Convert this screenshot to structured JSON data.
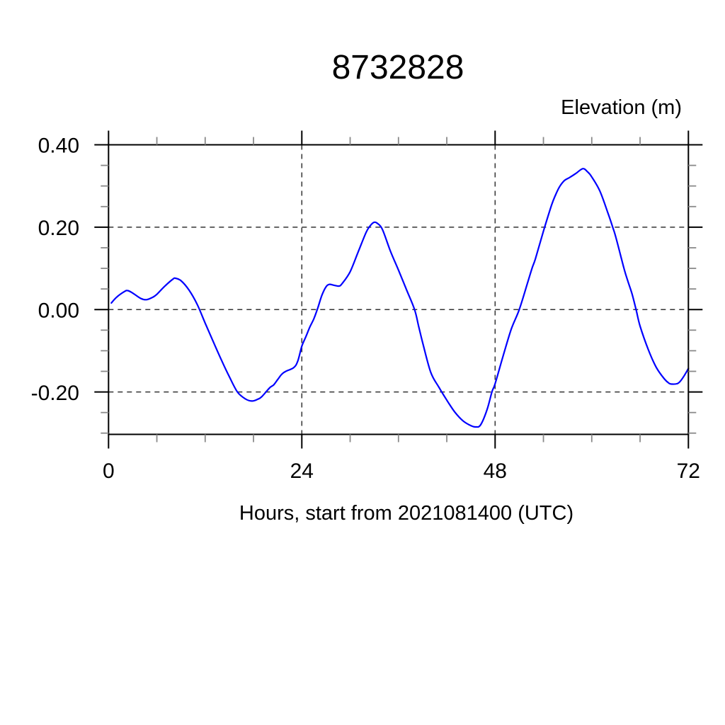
{
  "page": {
    "background_color": "#ffffff",
    "text_color": "#000000"
  },
  "chart_data": {
    "type": "line",
    "title": "8732828",
    "y_axis_label": "Elevation (m)",
    "x_axis_label": "Hours, start from 2021081400 (UTC)",
    "xlim": [
      0,
      72
    ],
    "ylim": [
      -0.303,
      0.4
    ],
    "x_major_ticks": [
      0,
      24,
      48,
      72
    ],
    "x_tick_labels": [
      "0",
      "24",
      "48",
      "72"
    ],
    "x_minor_step": 6,
    "y_major_ticks": [
      0.4,
      0.2,
      0.0,
      -0.2
    ],
    "y_tick_labels": [
      "0.40",
      "0.20",
      "0.00",
      "-0.20"
    ],
    "y_minor_step": 0.05,
    "grid": {
      "style": "dashed",
      "color": "#333333",
      "on_major_ticks": true
    },
    "frame": {
      "color": "#000000",
      "ticks_outward_all_sides": true
    },
    "line_color": "#0000ff",
    "series": [
      {
        "name": "elevation",
        "points": [
          [
            0.35,
            0.016
          ],
          [
            1,
            0.03
          ],
          [
            2,
            0.044
          ],
          [
            2.4,
            0.046
          ],
          [
            3,
            0.04
          ],
          [
            4,
            0.027
          ],
          [
            4.7,
            0.024
          ],
          [
            5.5,
            0.03
          ],
          [
            6,
            0.037
          ],
          [
            7,
            0.057
          ],
          [
            8,
            0.074
          ],
          [
            8.3,
            0.076
          ],
          [
            9,
            0.07
          ],
          [
            10,
            0.047
          ],
          [
            11,
            0.013
          ],
          [
            12,
            -0.033
          ],
          [
            13,
            -0.078
          ],
          [
            14,
            -0.122
          ],
          [
            15,
            -0.163
          ],
          [
            16,
            -0.2
          ],
          [
            17,
            -0.217
          ],
          [
            17.8,
            -0.222
          ],
          [
            18.5,
            -0.218
          ],
          [
            19,
            -0.212
          ],
          [
            20,
            -0.19
          ],
          [
            20.5,
            -0.183
          ],
          [
            21,
            -0.17
          ],
          [
            21.5,
            -0.157
          ],
          [
            22,
            -0.15
          ],
          [
            23,
            -0.141
          ],
          [
            23.5,
            -0.125
          ],
          [
            24,
            -0.089
          ],
          [
            24.5,
            -0.066
          ],
          [
            25,
            -0.042
          ],
          [
            25.5,
            -0.022
          ],
          [
            26,
            0.005
          ],
          [
            26.5,
            0.035
          ],
          [
            27,
            0.055
          ],
          [
            27.4,
            0.061
          ],
          [
            28,
            0.059
          ],
          [
            28.6,
            0.057
          ],
          [
            29,
            0.063
          ],
          [
            30,
            0.092
          ],
          [
            31,
            0.14
          ],
          [
            32,
            0.188
          ],
          [
            32.6,
            0.206
          ],
          [
            33,
            0.212
          ],
          [
            33.4,
            0.209
          ],
          [
            34,
            0.195
          ],
          [
            35,
            0.142
          ],
          [
            36,
            0.096
          ],
          [
            37,
            0.048
          ],
          [
            38,
            0.0
          ],
          [
            38.5,
            -0.04
          ],
          [
            39,
            -0.08
          ],
          [
            40,
            -0.152
          ],
          [
            41,
            -0.188
          ],
          [
            42,
            -0.22
          ],
          [
            43,
            -0.249
          ],
          [
            44,
            -0.27
          ],
          [
            45,
            -0.282
          ],
          [
            45.6,
            -0.285
          ],
          [
            46.2,
            -0.28
          ],
          [
            47,
            -0.243
          ],
          [
            47.6,
            -0.2
          ],
          [
            48,
            -0.18
          ],
          [
            49,
            -0.112
          ],
          [
            50,
            -0.048
          ],
          [
            51,
            0.0
          ],
          [
            52,
            0.063
          ],
          [
            52.6,
            0.101
          ],
          [
            53,
            0.123
          ],
          [
            54,
            0.19
          ],
          [
            55,
            0.253
          ],
          [
            55.5,
            0.278
          ],
          [
            56,
            0.298
          ],
          [
            56.6,
            0.313
          ],
          [
            57.2,
            0.32
          ],
          [
            58,
            0.33
          ],
          [
            58.9,
            0.342
          ],
          [
            59.5,
            0.334
          ],
          [
            60,
            0.322
          ],
          [
            61,
            0.288
          ],
          [
            62,
            0.235
          ],
          [
            62.6,
            0.2
          ],
          [
            63,
            0.175
          ],
          [
            64,
            0.1
          ],
          [
            64.5,
            0.068
          ],
          [
            65,
            0.038
          ],
          [
            65.5,
            0.0
          ],
          [
            66,
            -0.04
          ],
          [
            67,
            -0.096
          ],
          [
            68,
            -0.14
          ],
          [
            69,
            -0.168
          ],
          [
            69.6,
            -0.179
          ],
          [
            70,
            -0.181
          ],
          [
            70.6,
            -0.18
          ],
          [
            71,
            -0.174
          ],
          [
            71.5,
            -0.16
          ],
          [
            72,
            -0.143
          ]
        ]
      }
    ]
  }
}
